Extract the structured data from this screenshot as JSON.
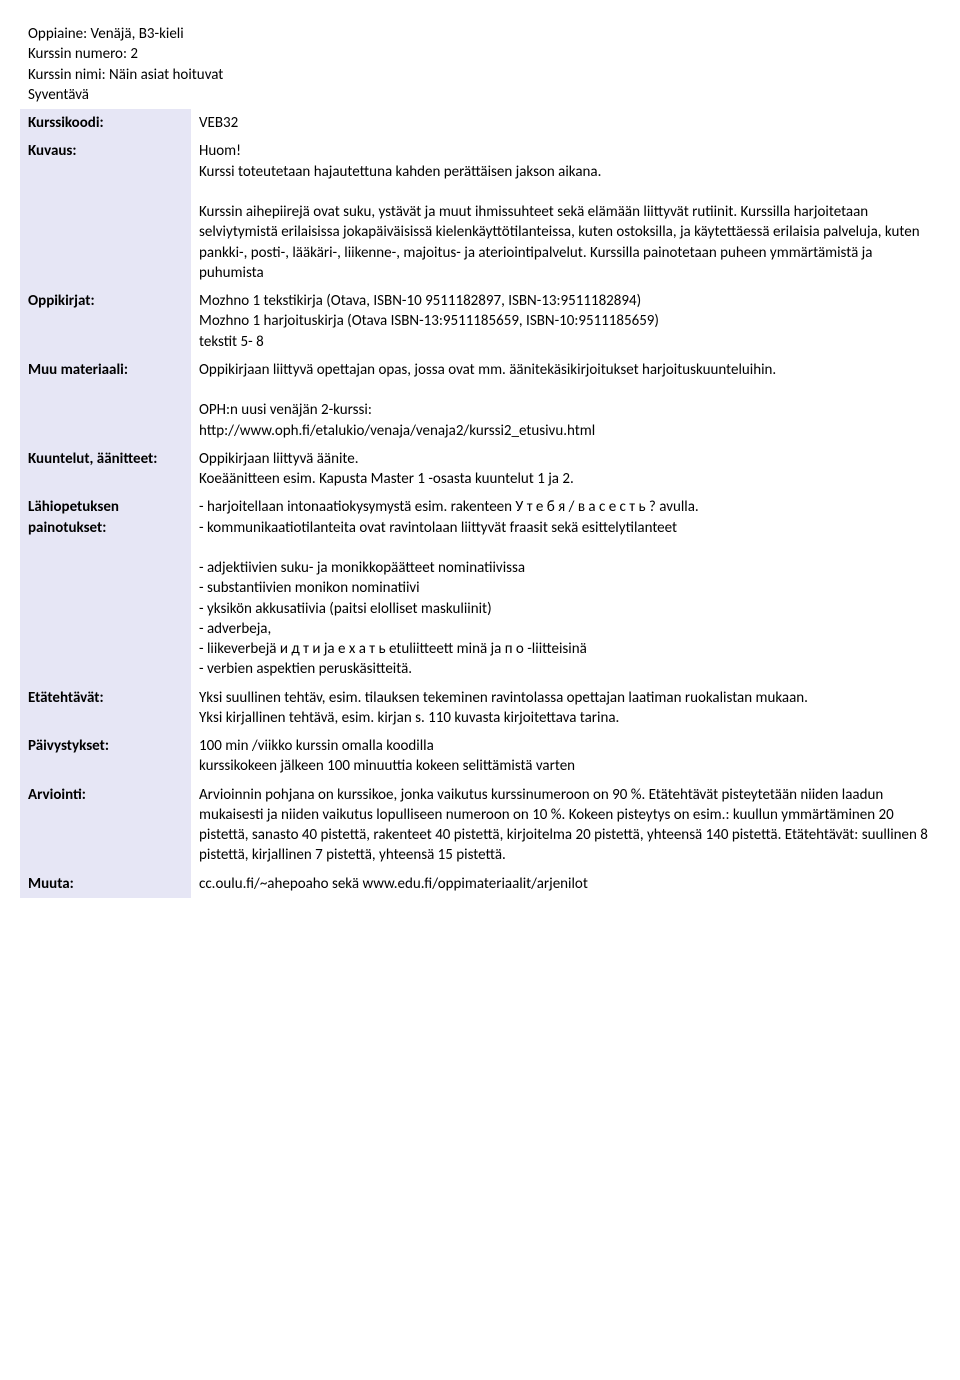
{
  "header": {
    "oppiaine_label": "Oppiaine:",
    "oppiaine_value": " Venäjä, B3-kieli",
    "kurssin_numero_label": "Kurssin numero:",
    "kurssin_numero_value": " 2",
    "kurssin_nimi_label": "Kurssin nimi:",
    "kurssin_nimi_value": " Näin asiat hoituvat",
    "syventava": "Syventävä"
  },
  "rows": {
    "kurssikoodi": {
      "label": "Kurssikoodi:",
      "value": "VEB32"
    },
    "kuvaus": {
      "label": "Kuvaus:",
      "huom": "Huom!",
      "line1": "Kurssi toteutetaan hajautettuna kahden perättäisen jakson aikana.",
      "para2": "Kurssin aihepiirejä ovat suku, ystävät ja muut ihmissuhteet sekä elämään liittyvät rutiinit. Kurssilla harjoitetaan selviytymistä erilaisissa jokapäiväisissä kielenkäyttötilanteissa, kuten ostoksilla, ja käytettäessä erilaisia palveluja, kuten pankki-, posti-, lääkäri-, liikenne-, majoitus- ja ateriointipalvelut. Kurssilla painotetaan puheen ymmärtämistä ja puhumista"
    },
    "oppikirjat": {
      "label": "Oppikirjat:",
      "line1": "Mozhno 1 tekstikirja (Otava, ISBN-10 9511182897, ISBN-13:9511182894)",
      "line2": "Mozhno 1 harjoituskirja (Otava ISBN-13:9511185659, ISBN-10:9511185659)",
      "line3": "tekstit 5- 8"
    },
    "muu_materiaali": {
      "label": "Muu materiaali:",
      "line1": "Oppikirjaan liittyvä opettajan opas, jossa ovat mm. äänitekäsikirjoitukset harjoituskuunteluihin.",
      "line2": "OPH:n uusi venäjän 2-kurssi:",
      "line3": "http://www.oph.fi/etalukio/venaja/venaja2/kurssi2_etusivu.html"
    },
    "kuuntelut": {
      "label": "Kuuntelut, äänitteet:",
      "line1": "Oppikirjaan liittyvä äänite.",
      "line2": "Koeäänitteen esim. Kapusta Master 1 -osasta kuuntelut 1 ja 2."
    },
    "lahipetuksen": {
      "label": "Lähiopetuksen painotukset:",
      "line1": "- harjoitellaan intonaatiokysymystä esim. rakenteen У т е б я / в а с е с т ь ? avulla.",
      "line2": "- kommunikaatiotilanteita ovat ravintolaan liittyvät fraasit sekä esittelytilanteet",
      "line3": "- adjektiivien suku- ja monikkopäätteet nominatiivissa",
      "line4": "- substantiivien monikon nominatiivi",
      "line5": "- yksikön akkusatiivia (paitsi elolliset maskuliinit)",
      "line6": "- adverbeja,",
      "line7": "- liikeverbejä и д т и ja е х а т ь etuliitteett minä ja п о -liitteisinä",
      "line8": "- verbien aspektien peruskäsitteitä."
    },
    "etatehtavat": {
      "label": "Etätehtävät:",
      "line1": "Yksi suullinen tehtäv, esim. tilauksen tekeminen ravintolassa opettajan laatiman ruokalistan mukaan.",
      "line2": "Yksi kirjallinen tehtävä, esim. kirjan s. 110 kuvasta kirjoitettava tarina."
    },
    "paivystykset": {
      "label": "Päivystykset:",
      "line1": " 100 min /viikko kurssin omalla koodilla",
      "line2": " kurssikokeen jälkeen 100 minuuttia kokeen selittämistä varten"
    },
    "arviointi": {
      "label": "Arviointi:",
      "text": "Arvioinnin pohjana on kurssikoe, jonka vaikutus kurssinumeroon on 90 %. Etätehtävät pisteytetään niiden laadun mukaisesti ja niiden vaikutus lopulliseen numeroon on 10 %. Kokeen pisteytys on esim.: kuullun ymmärtäminen 20 pistettä, sanasto 40 pistettä, rakenteet 40 pistettä, kirjoitelma 20 pistettä, yhteensä 140 pistettä. Etätehtävät: suullinen 8 pistettä, kirjallinen 7 pistettä, yhteensä 15 pistettä."
    },
    "muuta": {
      "label": "Muuta:",
      "text": "cc.oulu.fi/~ahepoaho sekä www.edu.fi/oppimateriaalit/arjenilot"
    }
  },
  "colors": {
    "label_bg": "#e6e6f5",
    "text": "#000000",
    "background": "#ffffff"
  }
}
